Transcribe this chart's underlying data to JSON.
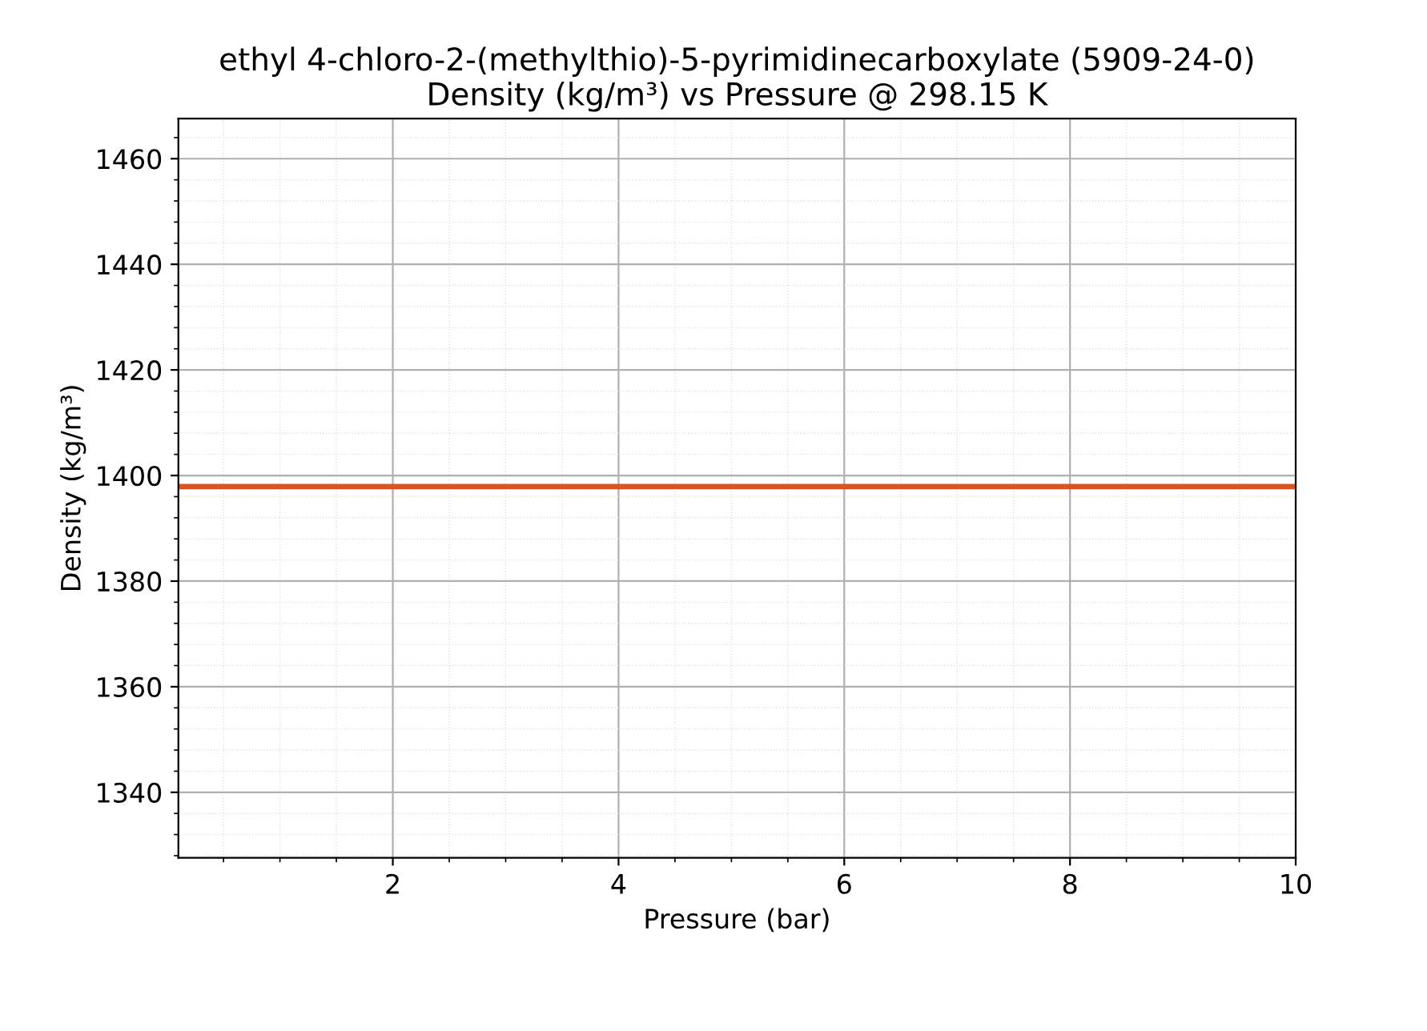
{
  "chart_data": {
    "type": "line",
    "title": "ethyl 4-chloro-2-(methylthio)-5-pyrimidinecarboxylate (5909-24-0)\nDensity (kg/m³) vs Pressure @ 298.15 K",
    "xlabel": "Pressure (bar)",
    "ylabel": "Density (kg/m³)",
    "series": [
      {
        "color": "#d9541e",
        "x": [
          0.1,
          10
        ],
        "values": [
          1397.9,
          1397.9
        ]
      }
    ],
    "xlim": [
      0.1,
      10
    ],
    "xticks": [
      2,
      4,
      6,
      8,
      10
    ],
    "ylim": [
      1327.6,
      1467.6
    ],
    "yticks": [
      1340,
      1360,
      1380,
      1400,
      1420,
      1440,
      1460
    ],
    "grid": true,
    "legend": false,
    "marker": "none",
    "line_style": "solid"
  }
}
